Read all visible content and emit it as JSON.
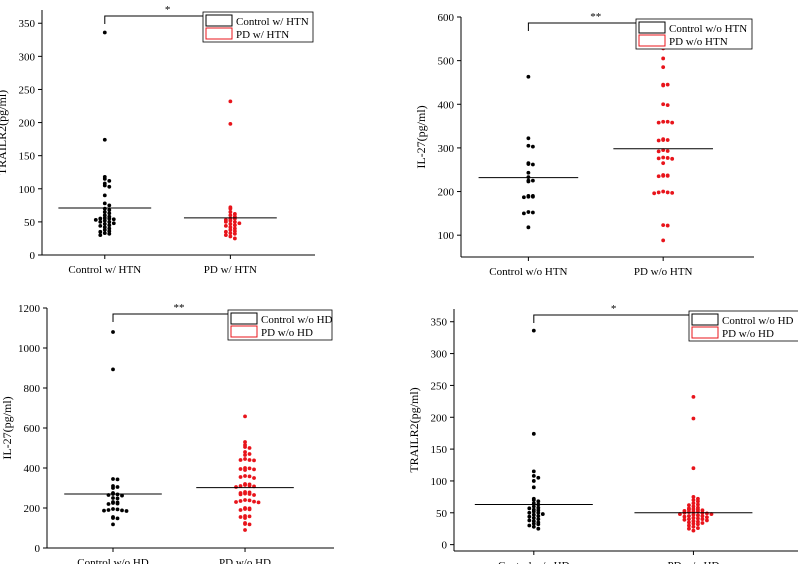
{
  "chart_data": [
    {
      "type": "scatter",
      "ylabel": "TRAILR2(pg/ml)",
      "ylim": [
        0,
        370
      ],
      "yticks": [
        0,
        50,
        100,
        150,
        200,
        250,
        300,
        350
      ],
      "categories": [
        "Control w/ HTN",
        "PD w/ HTN"
      ],
      "significance": "*",
      "legend": [
        "Control w/ HTN",
        "PD w/ HTN"
      ],
      "legend_position": "top-right",
      "series": [
        {
          "name": "Control w/ HTN",
          "color": "#000000",
          "mean": 71,
          "values": [
            336,
            174,
            118,
            115,
            112,
            108,
            105,
            103,
            90,
            78,
            75,
            70,
            68,
            65,
            63,
            60,
            58,
            56,
            55,
            55,
            54,
            53,
            52,
            50,
            50,
            48,
            47,
            45,
            44,
            42,
            40,
            38,
            36,
            35,
            33,
            32,
            30
          ]
        },
        {
          "name": "PD w/ HTN",
          "color": "#e8141b",
          "mean": 56,
          "values": [
            232,
            198,
            72,
            70,
            65,
            62,
            60,
            58,
            55,
            55,
            53,
            52,
            50,
            50,
            48,
            47,
            45,
            44,
            42,
            40,
            38,
            36,
            35,
            33,
            32,
            30,
            28,
            25
          ]
        }
      ]
    },
    {
      "type": "scatter",
      "ylabel": "IL-27(pg/ml)",
      "ylim": [
        50,
        600
      ],
      "yticks": [
        100,
        200,
        300,
        400,
        500,
        600
      ],
      "categories": [
        "Control w/o HTN",
        "PD w/o HTN"
      ],
      "significance": "**",
      "legend": [
        "Control w/o HTN",
        "PD w/o HTN"
      ],
      "legend_position": "top-right",
      "series": [
        {
          "name": "Control w/o HTN",
          "color": "#000000",
          "mean": 232,
          "values": [
            463,
            322,
            305,
            303,
            265,
            263,
            262,
            243,
            233,
            225,
            225,
            223,
            190,
            190,
            188,
            188,
            187,
            153,
            152,
            150,
            118
          ]
        },
        {
          "name": "PD w/o HTN",
          "color": "#e8141b",
          "mean": 298,
          "values": [
            528,
            505,
            485,
            445,
            445,
            443,
            400,
            398,
            360,
            360,
            358,
            358,
            320,
            318,
            318,
            317,
            295,
            293,
            292,
            278,
            277,
            276,
            275,
            265,
            238,
            237,
            236,
            236,
            235,
            200,
            198,
            198,
            197,
            196,
            123,
            122,
            88
          ]
        }
      ]
    },
    {
      "type": "scatter",
      "ylabel": "IL-27(pg/ml)",
      "ylim": [
        0,
        1200
      ],
      "yticks": [
        0,
        200,
        400,
        600,
        800,
        1000,
        1200
      ],
      "categories": [
        "Control w/o HD",
        "PD w/o HD"
      ],
      "significance": "**",
      "legend": [
        "Control w/o HD",
        "PD w/o HD"
      ],
      "legend_position": "top-right",
      "series": [
        {
          "name": "Control w/o HD",
          "color": "#000000",
          "mean": 270,
          "values": [
            1080,
            893,
            345,
            343,
            310,
            305,
            300,
            275,
            270,
            268,
            265,
            262,
            250,
            248,
            230,
            228,
            225,
            222,
            220,
            195,
            193,
            190,
            188,
            187,
            185,
            155,
            150,
            148,
            118
          ]
        },
        {
          "name": "PD w/o HD",
          "color": "#e8141b",
          "mean": 302,
          "values": [
            658,
            530,
            515,
            505,
            500,
            480,
            470,
            465,
            445,
            440,
            440,
            438,
            400,
            398,
            395,
            393,
            390,
            360,
            358,
            355,
            350,
            320,
            318,
            315,
            312,
            310,
            308,
            305,
            280,
            278,
            275,
            272,
            270,
            268,
            265,
            240,
            238,
            235,
            232,
            230,
            228,
            200,
            198,
            195,
            193,
            190,
            160,
            158,
            155,
            150,
            125,
            120,
            118,
            90
          ]
        }
      ]
    },
    {
      "type": "scatter",
      "ylabel": "TRAILR2(pg/ml)",
      "ylim": [
        -10,
        370
      ],
      "yticks": [
        0,
        50,
        100,
        150,
        200,
        250,
        300,
        350
      ],
      "categories": [
        "Control w/o HD",
        "PD w/o HD"
      ],
      "significance": "*",
      "legend": [
        "Control w/o HD",
        "PD w/o HD"
      ],
      "legend_position": "top-right",
      "series": [
        {
          "name": "Control w/o HD",
          "color": "#000000",
          "mean": 63,
          "values": [
            336,
            174,
            115,
            108,
            105,
            100,
            90,
            72,
            70,
            68,
            65,
            63,
            60,
            58,
            57,
            55,
            54,
            52,
            50,
            50,
            48,
            47,
            45,
            44,
            42,
            40,
            38,
            37,
            35,
            33,
            32,
            30,
            28,
            25
          ]
        },
        {
          "name": "PD w/o HD",
          "color": "#e8141b",
          "mean": 50,
          "values": [
            232,
            198,
            120,
            75,
            72,
            70,
            68,
            65,
            63,
            62,
            60,
            58,
            57,
            56,
            55,
            55,
            54,
            53,
            52,
            52,
            51,
            50,
            50,
            49,
            48,
            48,
            47,
            46,
            45,
            45,
            44,
            43,
            42,
            41,
            40,
            40,
            39,
            38,
            37,
            36,
            35,
            34,
            33,
            32,
            30,
            28,
            26,
            25,
            22
          ]
        }
      ]
    }
  ]
}
